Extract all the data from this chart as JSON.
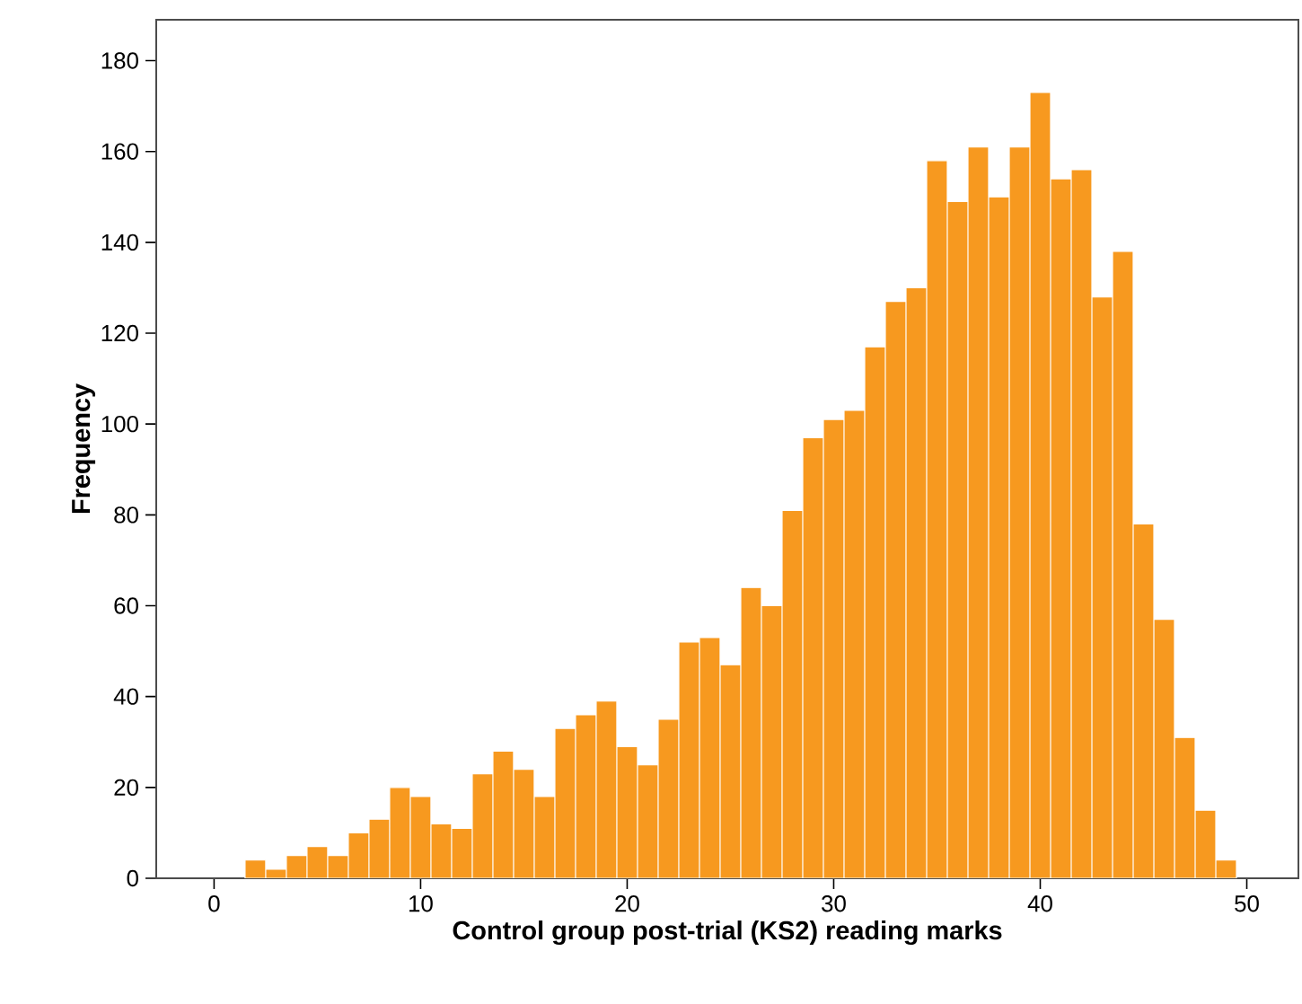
{
  "chart_data": {
    "type": "histogram",
    "xlabel": "Control group post-trial (KS2) reading marks",
    "ylabel": "Frequency",
    "bins": [
      1.5,
      2.5,
      3.5,
      4.5,
      5.5,
      6.5,
      7.5,
      8.5,
      9.5,
      10.5,
      11.5,
      12.5,
      13.5,
      14.5,
      15.5,
      16.5,
      17.5,
      18.5,
      19.5,
      20.5,
      21.5,
      22.5,
      23.5,
      24.5,
      25.5,
      26.5,
      27.5,
      28.5,
      29.5,
      30.5,
      31.5,
      32.5,
      33.5,
      34.5,
      35.5,
      36.5,
      37.5,
      38.5,
      39.5,
      40.5,
      41.5,
      42.5,
      43.5,
      44.5,
      45.5,
      46.5,
      47.5,
      48.5,
      49.5
    ],
    "values": [
      4,
      2,
      5,
      7,
      5,
      10,
      13,
      20,
      18,
      12,
      11,
      23,
      28,
      24,
      18,
      33,
      36,
      39,
      29,
      25,
      35,
      52,
      53,
      47,
      64,
      60,
      81,
      97,
      101,
      103,
      117,
      127,
      130,
      158,
      149,
      161,
      150,
      161,
      173,
      154,
      156,
      128,
      138,
      78,
      57,
      31,
      15,
      4
    ],
    "color": "#f7991f",
    "xlim": [
      -2.8,
      52.5
    ],
    "xticks": [
      0,
      10,
      20,
      30,
      40,
      50
    ],
    "ylim": [
      0,
      189
    ],
    "yticks": [
      0,
      20,
      40,
      60,
      80,
      100,
      120,
      140,
      160,
      180
    ]
  }
}
